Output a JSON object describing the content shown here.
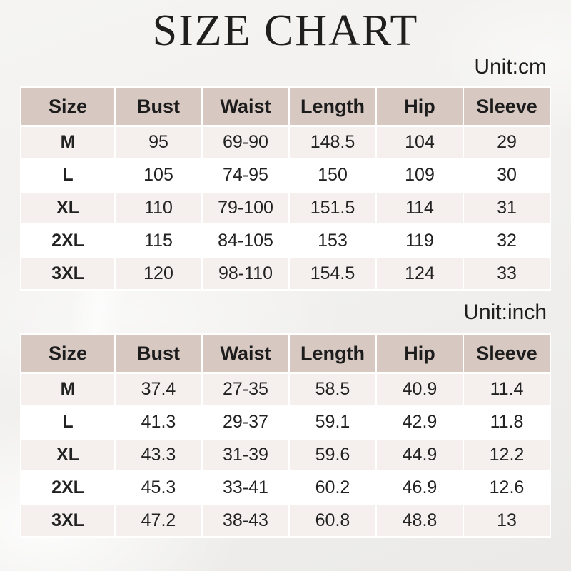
{
  "title": "SIZE CHART",
  "chart_data": [
    {
      "type": "table",
      "unit_label": "Unit:cm",
      "columns": [
        "Size",
        "Bust",
        "Waist",
        "Length",
        "Hip",
        "Sleeve"
      ],
      "rows": [
        [
          "M",
          "95",
          "69-90",
          "148.5",
          "104",
          "29"
        ],
        [
          "L",
          "105",
          "74-95",
          "150",
          "109",
          "30"
        ],
        [
          "XL",
          "110",
          "79-100",
          "151.5",
          "114",
          "31"
        ],
        [
          "2XL",
          "115",
          "84-105",
          "153",
          "119",
          "32"
        ],
        [
          "3XL",
          "120",
          "98-110",
          "154.5",
          "124",
          "33"
        ]
      ]
    },
    {
      "type": "table",
      "unit_label": "Unit:inch",
      "columns": [
        "Size",
        "Bust",
        "Waist",
        "Length",
        "Hip",
        "Sleeve"
      ],
      "rows": [
        [
          "M",
          "37.4",
          "27-35",
          "58.5",
          "40.9",
          "11.4"
        ],
        [
          "L",
          "41.3",
          "29-37",
          "59.1",
          "42.9",
          "11.8"
        ],
        [
          "XL",
          "43.3",
          "31-39",
          "59.6",
          "44.9",
          "12.2"
        ],
        [
          "2XL",
          "45.3",
          "33-41",
          "60.2",
          "46.9",
          "12.6"
        ],
        [
          "3XL",
          "47.2",
          "38-43",
          "60.8",
          "48.8",
          "13"
        ]
      ]
    }
  ],
  "colors": {
    "header_bg": "#d7c8c2",
    "row_odd_bg": "#f5f0ee",
    "row_even_bg": "#ffffff",
    "page_bg": "#f1f0ee",
    "text": "#1d1d1d"
  }
}
